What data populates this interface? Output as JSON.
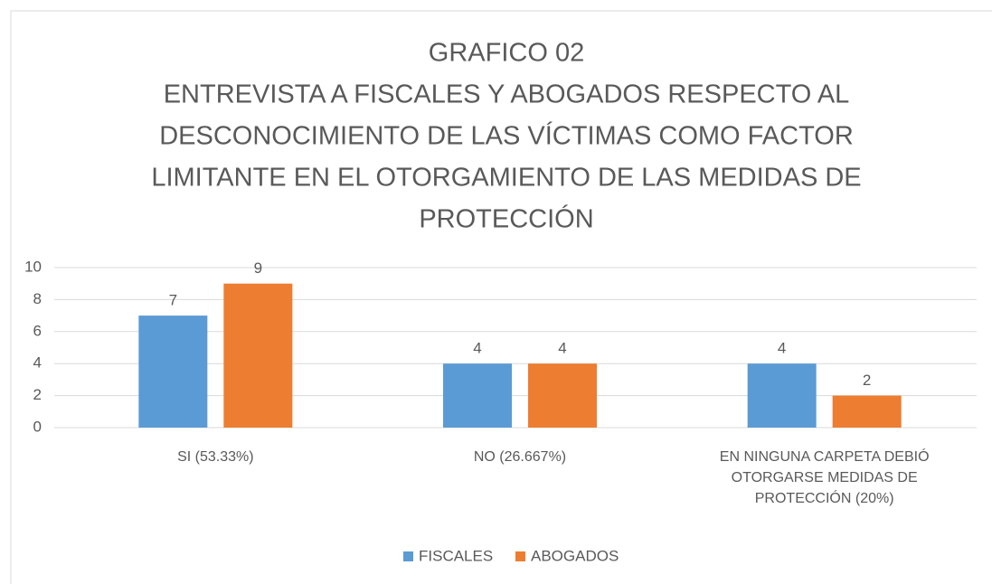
{
  "chart_data": {
    "type": "bar",
    "title": [
      "GRAFICO 02",
      "ENTREVISTA A FISCALES Y ABOGADOS RESPECTO AL",
      "DESCONOCIMIENTO DE LAS VÍCTIMAS COMO FACTOR",
      "LIMITANTE EN EL OTORGAMIENTO DE LAS MEDIDAS DE",
      "PROTECCIÓN"
    ],
    "categories": [
      "SI (53.33%)",
      "NO (26.667%)",
      "EN NINGUNA CARPETA DEBIÓ OTORGARSE MEDIDAS DE PROTECCIÓN (20%)"
    ],
    "series": [
      {
        "name": "FISCALES",
        "color": "#5b9bd5",
        "values": [
          7,
          4,
          4
        ]
      },
      {
        "name": "ABOGADOS",
        "color": "#ed7d31",
        "values": [
          9,
          4,
          2
        ]
      }
    ],
    "ylim": [
      0,
      10
    ],
    "yticks": [
      0,
      2,
      4,
      6,
      8,
      10
    ],
    "grid": true,
    "legend": "bottom"
  }
}
